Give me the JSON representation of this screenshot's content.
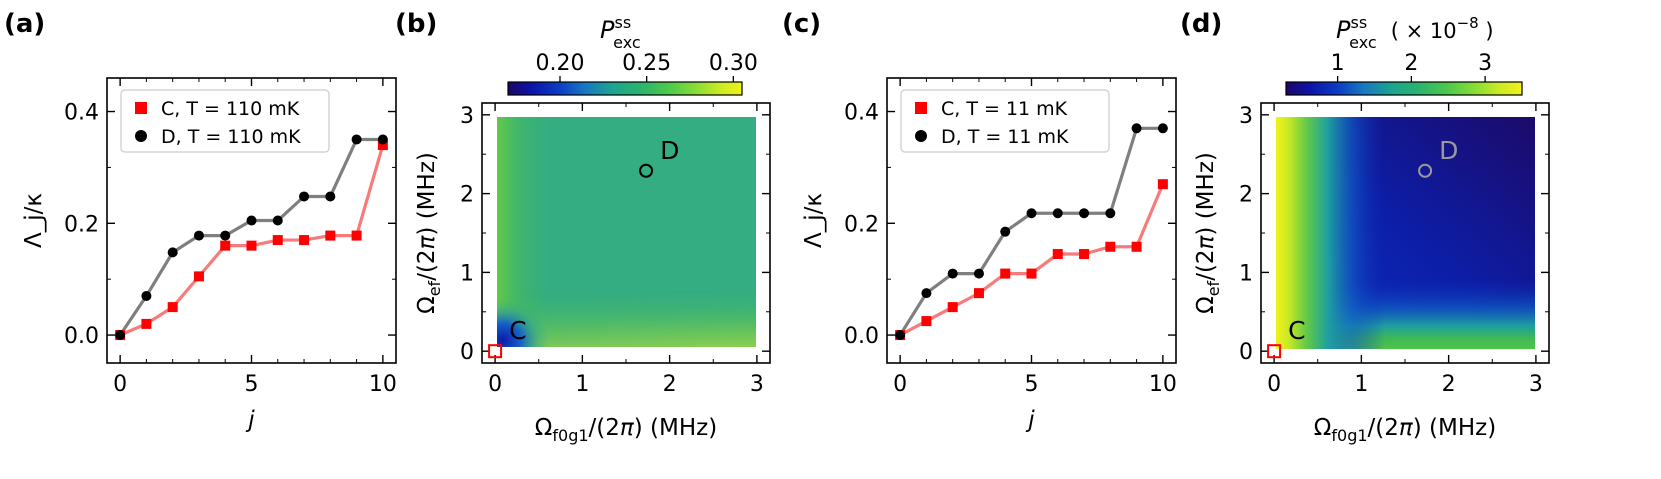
{
  "chart_data": [
    {
      "panel": "(a)",
      "type": "line",
      "xlabel": "j",
      "ylabel": "Λ_j/κ",
      "xlim": [
        -0.5,
        10.5
      ],
      "ylim": [
        -0.05,
        0.46
      ],
      "xticks": [
        "0",
        "5",
        "10"
      ],
      "yticks": [
        "0.0",
        "0.2",
        "0.4"
      ],
      "legend": "top-left",
      "series": [
        {
          "name": "C,  T = 110 mK",
          "color": "#ff0000",
          "line_color": "#f77b7b",
          "marker": "square",
          "x": [
            0,
            1,
            2,
            3,
            4,
            5,
            6,
            7,
            8,
            9,
            10
          ],
          "values": [
            0.0,
            0.02,
            0.05,
            0.105,
            0.16,
            0.16,
            0.17,
            0.17,
            0.178,
            0.178,
            0.34
          ]
        },
        {
          "name": "D,  T = 110 mK",
          "color": "#000000",
          "line_color": "#7f7f7f",
          "marker": "circle",
          "x": [
            0,
            1,
            2,
            3,
            4,
            5,
            6,
            7,
            8,
            9,
            10
          ],
          "values": [
            0.0,
            0.07,
            0.148,
            0.178,
            0.178,
            0.205,
            0.205,
            0.248,
            0.248,
            0.35,
            0.35
          ]
        }
      ]
    },
    {
      "panel": "(b)",
      "type": "heatmap",
      "xlabel": "Ω_f0g1/(2π) (MHz)",
      "ylabel": "Ω_ef/(2π) (MHz)",
      "xlim": [
        -0.15,
        3.15
      ],
      "ylim": [
        -0.15,
        3.15
      ],
      "xticks": [
        "0",
        "1",
        "2",
        "3"
      ],
      "yticks": [
        "0",
        "1",
        "2",
        "3"
      ],
      "colorbar": {
        "label": "P_exc^ss",
        "range": [
          0.17,
          0.305
        ],
        "ticks": [
          "0.20",
          "0.25",
          "0.30"
        ],
        "colormap": "gist_earth-like"
      },
      "points": [
        {
          "label": "C",
          "x": 0.0,
          "y": 0.0,
          "marker_color": "#ff0000"
        },
        {
          "label": "D",
          "x": 1.73,
          "y": 2.29,
          "marker_color": "#000000"
        }
      ]
    },
    {
      "panel": "(c)",
      "type": "line",
      "xlabel": "j",
      "ylabel": "Λ_j/κ",
      "xlim": [
        -0.5,
        10.5
      ],
      "ylim": [
        -0.05,
        0.46
      ],
      "xticks": [
        "0",
        "5",
        "10"
      ],
      "yticks": [
        "0.0",
        "0.2",
        "0.4"
      ],
      "legend": "top-left",
      "series": [
        {
          "name": "C,  T = 11 mK",
          "color": "#ff0000",
          "line_color": "#f77b7b",
          "marker": "square",
          "x": [
            0,
            1,
            2,
            3,
            4,
            5,
            6,
            7,
            8,
            9,
            10
          ],
          "values": [
            0.0,
            0.025,
            0.05,
            0.075,
            0.11,
            0.11,
            0.145,
            0.145,
            0.158,
            0.158,
            0.27
          ]
        },
        {
          "name": "D,  T = 11 mK",
          "color": "#000000",
          "line_color": "#7f7f7f",
          "marker": "circle",
          "x": [
            0,
            1,
            2,
            3,
            4,
            5,
            6,
            7,
            8,
            9,
            10
          ],
          "values": [
            0.0,
            0.075,
            0.11,
            0.11,
            0.185,
            0.218,
            0.218,
            0.218,
            0.218,
            0.37,
            0.37
          ]
        }
      ]
    },
    {
      "panel": "(d)",
      "type": "heatmap",
      "xlabel": "Ω_f0g1/(2π) (MHz)",
      "ylabel": "Ω_ef/(2π) (MHz)",
      "xlim": [
        -0.15,
        3.15
      ],
      "ylim": [
        -0.15,
        3.15
      ],
      "xticks": [
        "0",
        "1",
        "2",
        "3"
      ],
      "yticks": [
        "0",
        "1",
        "2",
        "3"
      ],
      "colorbar": {
        "label": "P_exc^ss  (×10⁻⁸)",
        "range": [
          0.3,
          3.5
        ],
        "ticks": [
          "1",
          "2",
          "3"
        ],
        "colormap": "gist_earth-like"
      },
      "points": [
        {
          "label": "C",
          "x": 0.0,
          "y": 0.0,
          "marker_color": "#ff0000"
        },
        {
          "label": "D",
          "x": 1.73,
          "y": 2.29,
          "marker_color": "#999999"
        }
      ]
    }
  ]
}
